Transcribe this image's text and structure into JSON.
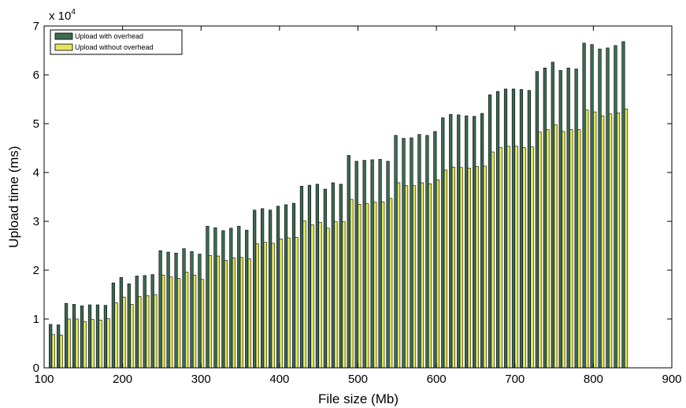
{
  "chart_data": {
    "type": "bar",
    "xlabel": "File size (Mb)",
    "ylabel": "Upload time (ms)",
    "y_multiplier": "x 10",
    "y_multiplier_exp": "4",
    "xlim": [
      100,
      900
    ],
    "ylim": [
      0,
      70000
    ],
    "x_ticks": [
      100,
      200,
      300,
      400,
      500,
      600,
      700,
      800,
      900
    ],
    "y_ticks": [
      0,
      10000,
      20000,
      30000,
      40000,
      50000,
      60000,
      70000
    ],
    "y_tick_labels": [
      "0",
      "1",
      "2",
      "3",
      "4",
      "5",
      "6",
      "7"
    ],
    "grid": false,
    "legend_position": "top-left",
    "x": [
      110,
      120,
      130,
      140,
      150,
      160,
      170,
      180,
      190,
      200,
      210,
      220,
      230,
      240,
      250,
      260,
      270,
      280,
      290,
      300,
      310,
      320,
      330,
      340,
      350,
      360,
      370,
      380,
      390,
      400,
      410,
      420,
      430,
      440,
      450,
      460,
      470,
      480,
      490,
      500,
      510,
      520,
      530,
      540,
      550,
      560,
      570,
      580,
      590,
      600,
      610,
      620,
      630,
      640,
      650,
      660,
      670,
      680,
      690,
      700,
      710,
      720,
      730,
      740,
      750,
      760,
      770,
      780,
      790,
      800,
      810,
      820,
      830,
      840
    ],
    "series": [
      {
        "name": "Upload with overhead",
        "color": "#3d6b52",
        "values": [
          8900,
          8800,
          13200,
          13000,
          12700,
          12900,
          12900,
          12800,
          17400,
          18500,
          17200,
          18800,
          18900,
          19100,
          24000,
          23700,
          23500,
          24400,
          23800,
          23300,
          29000,
          28700,
          28100,
          28600,
          29000,
          28200,
          32300,
          32600,
          32300,
          33100,
          33400,
          33700,
          37200,
          37400,
          37600,
          36600,
          37900,
          37600,
          43500,
          42300,
          42500,
          42600,
          42700,
          42300,
          47600,
          47000,
          47100,
          47800,
          47600,
          48400,
          51200,
          51900,
          51800,
          51600,
          51500,
          52100,
          55900,
          56600,
          57100,
          57100,
          57000,
          56800,
          60700,
          61400,
          62600,
          60900,
          61400,
          61200,
          66500,
          66200,
          65300,
          65500,
          66000,
          66800
        ]
      },
      {
        "name": "Upload without overhead",
        "color": "#e6e65e",
        "values": [
          6800,
          6700,
          10000,
          10000,
          9500,
          9900,
          9800,
          10100,
          13300,
          14500,
          13000,
          14600,
          14800,
          15000,
          19000,
          18600,
          18300,
          19600,
          19000,
          18100,
          23000,
          22900,
          22000,
          22500,
          22600,
          22300,
          25400,
          25700,
          25500,
          26400,
          26600,
          26700,
          30100,
          29300,
          29800,
          28600,
          29900,
          29900,
          34500,
          33500,
          33600,
          33900,
          34000,
          34700,
          37900,
          37300,
          37300,
          37900,
          37700,
          38500,
          40500,
          41100,
          41000,
          40900,
          41200,
          41300,
          44200,
          45100,
          45400,
          45400,
          45100,
          45300,
          48300,
          48800,
          49800,
          48400,
          48800,
          48800,
          52800,
          52400,
          51600,
          52000,
          52200,
          53000
        ]
      }
    ]
  }
}
